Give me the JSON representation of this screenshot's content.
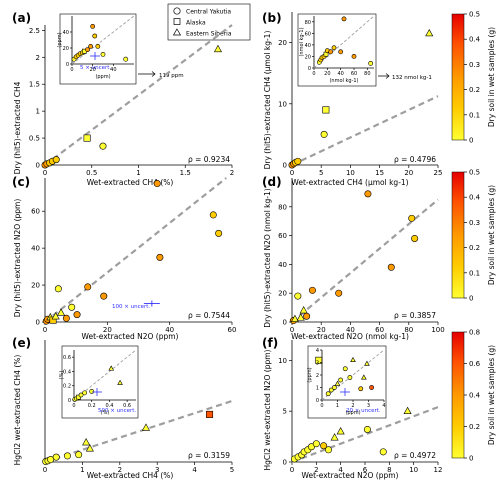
{
  "colors": {
    "scale": [
      "#ffff33",
      "#ffcc00",
      "#ff9900",
      "#ff5500",
      "#e60000"
    ],
    "reference_line": "#9e9e9e",
    "uncertainty": "#3030ff"
  },
  "legend": {
    "items": [
      {
        "label": "Central Yakutia",
        "marker": "circle"
      },
      {
        "label": "Alaska",
        "marker": "square"
      },
      {
        "label": "Eastern Siberia",
        "marker": "triangle"
      }
    ]
  },
  "colorbars": [
    {
      "label": "Dry soil in wet samples (g)",
      "ticks": [
        "0",
        "0.1",
        "0.2",
        "0.3",
        "0.4",
        "0.5"
      ],
      "max": 0.5
    },
    {
      "label": "Dry soil in wet samples (g)",
      "ticks": [
        "0",
        "0.1",
        "0.2",
        "0.3",
        "0.4",
        "0.5"
      ],
      "max": 0.5
    },
    {
      "label": "Dry soil in wet samples (g)",
      "ticks": [
        "0",
        "0.2",
        "0.4",
        "0.6",
        "0.8"
      ],
      "max": 0.8
    }
  ],
  "chart_data": [
    {
      "type": "scatter",
      "panel": "(a)",
      "xlabel": "Wet-extracted CH4 (%)",
      "ylabel": "Dry (hit5)-extracted CH4",
      "xlim": [
        0,
        2
      ],
      "ylim": [
        0,
        2.6
      ],
      "xticks": [
        "0",
        "0.5",
        "1",
        "1.5",
        "2"
      ],
      "yticks": [
        "0",
        "0.5",
        "1",
        "1.5",
        "2",
        "2.5"
      ],
      "annotation": "ρ = 0.9234",
      "points": [
        {
          "x": 0.0,
          "y": 0.0,
          "shape": "circle",
          "c": 0.45
        },
        {
          "x": 0.02,
          "y": 0.02,
          "shape": "circle",
          "c": 0.4
        },
        {
          "x": 0.05,
          "y": 0.04,
          "shape": "circle",
          "c": 0.35
        },
        {
          "x": 0.08,
          "y": 0.07,
          "shape": "circle",
          "c": 0.3
        },
        {
          "x": 0.12,
          "y": 0.1,
          "shape": "circle",
          "c": 0.25
        },
        {
          "x": 0.45,
          "y": 0.5,
          "shape": "square",
          "c": 0.1
        },
        {
          "x": 0.62,
          "y": 0.35,
          "shape": "circle",
          "c": 0.05
        },
        {
          "x": 1.85,
          "y": 2.15,
          "shape": "triangle",
          "c": 0.05
        }
      ],
      "inset": {
        "xlabel": "(ppm)",
        "ylabel": "(ppm)",
        "xlim": [
          0,
          60
        ],
        "ylim": [
          0,
          60
        ],
        "xticks": [
          "0",
          "20",
          "40"
        ],
        "yticks": [
          "0",
          "20",
          "40"
        ],
        "uncertainty_label": "5 × uncert.",
        "arrow_label": "119 ppm",
        "points": [
          {
            "x": 2,
            "y": 6,
            "shape": "circle",
            "c": 0.2
          },
          {
            "x": 4,
            "y": 9,
            "shape": "circle",
            "c": 0.3
          },
          {
            "x": 6,
            "y": 11,
            "shape": "circle",
            "c": 0.25
          },
          {
            "x": 8,
            "y": 13,
            "shape": "circle",
            "c": 0.35
          },
          {
            "x": 10,
            "y": 14,
            "shape": "circle",
            "c": 0.3
          },
          {
            "x": 12,
            "y": 16,
            "shape": "square",
            "c": 0.2
          },
          {
            "x": 15,
            "y": 18,
            "shape": "circle",
            "c": 0.4
          },
          {
            "x": 18,
            "y": 22,
            "shape": "circle",
            "c": 0.45
          },
          {
            "x": 20,
            "y": 47,
            "shape": "circle",
            "c": 0.4
          },
          {
            "x": 22,
            "y": 35,
            "shape": "circle",
            "c": 0.3
          },
          {
            "x": 25,
            "y": 22,
            "shape": "circle",
            "c": 0.35
          },
          {
            "x": 30,
            "y": 12,
            "shape": "circle",
            "c": 0.2
          },
          {
            "x": 52,
            "y": 6,
            "shape": "circle",
            "c": 0.1
          }
        ]
      }
    },
    {
      "type": "scatter",
      "panel": "(b)",
      "xlabel": "Wet-extracted CH4 (µmol kg-1)",
      "ylabel": "Dry (hit5)-extracted CH4 (µmol kg-1)",
      "xlim": [
        0,
        25
      ],
      "ylim": [
        0,
        25
      ],
      "xticks": [
        "0",
        "5",
        "10",
        "15",
        "20",
        "25"
      ],
      "yticks": [
        "0",
        "10",
        "20"
      ],
      "annotation": "ρ = 0.4796",
      "points": [
        {
          "x": 0.0,
          "y": 0.0,
          "shape": "circle",
          "c": 0.45
        },
        {
          "x": 0.3,
          "y": 0.2,
          "shape": "circle",
          "c": 0.4
        },
        {
          "x": 0.6,
          "y": 0.4,
          "shape": "circle",
          "c": 0.35
        },
        {
          "x": 1.0,
          "y": 0.6,
          "shape": "circle",
          "c": 0.3
        },
        {
          "x": 5.8,
          "y": 9.0,
          "shape": "square",
          "c": 0.1
        },
        {
          "x": 5.5,
          "y": 5.0,
          "shape": "circle",
          "c": 0.05
        },
        {
          "x": 23.5,
          "y": 21.5,
          "shape": "triangle",
          "c": 0.05
        }
      ],
      "inset": {
        "xlabel": "(nmol kg-1)",
        "ylabel": "(nmol kg-1)",
        "xlim": [
          0,
          90
        ],
        "ylim": [
          0,
          90
        ],
        "xticks": [
          "0",
          "20",
          "40",
          "60",
          "80"
        ],
        "yticks": [
          "0",
          "20",
          "40",
          "60",
          "80"
        ],
        "arrow_label": "132 nmol kg-1",
        "points": [
          {
            "x": 8,
            "y": 10,
            "shape": "circle",
            "c": 0.2
          },
          {
            "x": 10,
            "y": 14,
            "shape": "circle",
            "c": 0.3
          },
          {
            "x": 12,
            "y": 18,
            "shape": "circle",
            "c": 0.25
          },
          {
            "x": 15,
            "y": 20,
            "shape": "circle",
            "c": 0.35
          },
          {
            "x": 18,
            "y": 24,
            "shape": "square",
            "c": 0.2
          },
          {
            "x": 20,
            "y": 30,
            "shape": "circle",
            "c": 0.3
          },
          {
            "x": 25,
            "y": 28,
            "shape": "circle",
            "c": 0.4
          },
          {
            "x": 30,
            "y": 35,
            "shape": "circle",
            "c": 0.35
          },
          {
            "x": 40,
            "y": 28,
            "shape": "circle",
            "c": 0.45
          },
          {
            "x": 45,
            "y": 85,
            "shape": "circle",
            "c": 0.5
          },
          {
            "x": 60,
            "y": 20,
            "shape": "circle",
            "c": 0.4
          },
          {
            "x": 85,
            "y": 8,
            "shape": "circle",
            "c": 0.1
          }
        ]
      }
    },
    {
      "type": "scatter",
      "panel": "(c)",
      "xlabel": "Wet-extracted N2O (ppm)",
      "ylabel": "Dry (hit5)-extracted N2O (ppm)",
      "xlim": [
        0,
        70
      ],
      "ylim": [
        0,
        78
      ],
      "xticks": [
        "0",
        "20",
        "40",
        "60"
      ],
      "yticks": [
        "0",
        "20",
        "40",
        "60"
      ],
      "annotation": "ρ = 0.7544",
      "uncertainty_label": "100 × uncert.",
      "points": [
        {
          "x": 0.5,
          "y": 0.5,
          "shape": "circle",
          "c": 0.45
        },
        {
          "x": 1.0,
          "y": 1.5,
          "shape": "circle",
          "c": 0.4
        },
        {
          "x": 2.0,
          "y": 2.5,
          "shape": "triangle",
          "c": 0.05
        },
        {
          "x": 3.0,
          "y": 1.0,
          "shape": "square",
          "c": 0.35
        },
        {
          "x": 4.0,
          "y": 3.0,
          "shape": "triangle",
          "c": 0.1
        },
        {
          "x": 5.0,
          "y": 18.0,
          "shape": "circle",
          "c": 0.05
        },
        {
          "x": 6.0,
          "y": 5.0,
          "shape": "triangle",
          "c": 0.05
        },
        {
          "x": 8.0,
          "y": 2.0,
          "shape": "circle",
          "c": 0.4
        },
        {
          "x": 10.0,
          "y": 8.0,
          "shape": "circle",
          "c": 0.1
        },
        {
          "x": 12.0,
          "y": 4.0,
          "shape": "circle",
          "c": 0.45
        },
        {
          "x": 16.0,
          "y": 19.0,
          "shape": "circle",
          "c": 0.45
        },
        {
          "x": 22.0,
          "y": 14.0,
          "shape": "circle",
          "c": 0.4
        },
        {
          "x": 42.0,
          "y": 75.0,
          "shape": "circle",
          "c": 0.45
        },
        {
          "x": 43.0,
          "y": 35.0,
          "shape": "circle",
          "c": 0.4
        },
        {
          "x": 63.0,
          "y": 58.0,
          "shape": "circle",
          "c": 0.25
        },
        {
          "x": 65.0,
          "y": 48.0,
          "shape": "circle",
          "c": 0.3
        }
      ]
    },
    {
      "type": "scatter",
      "panel": "(d)",
      "xlabel": "Wet-extracted N2O (nmol kg-1)",
      "ylabel": "Dry (hit5)-extracted N2O (nmol kg-1)",
      "xlim": [
        0,
        100
      ],
      "ylim": [
        0,
        100
      ],
      "xticks": [
        "0",
        "20",
        "40",
        "60",
        "80",
        "100"
      ],
      "yticks": [
        "0",
        "20",
        "40",
        "60",
        "80"
      ],
      "annotation": "ρ = 0.3857",
      "points": [
        {
          "x": 1,
          "y": 1,
          "shape": "circle",
          "c": 0.45
        },
        {
          "x": 2,
          "y": 2,
          "shape": "triangle",
          "c": 0.05
        },
        {
          "x": 4,
          "y": 18,
          "shape": "circle",
          "c": 0.05
        },
        {
          "x": 6,
          "y": 3,
          "shape": "triangle",
          "c": 0.1
        },
        {
          "x": 8,
          "y": 8,
          "shape": "triangle",
          "c": 0.05
        },
        {
          "x": 10,
          "y": 4,
          "shape": "circle",
          "c": 0.4
        },
        {
          "x": 14,
          "y": 22,
          "shape": "circle",
          "c": 0.45
        },
        {
          "x": 32,
          "y": 20,
          "shape": "circle",
          "c": 0.4
        },
        {
          "x": 52,
          "y": 89,
          "shape": "circle",
          "c": 0.45
        },
        {
          "x": 68,
          "y": 38,
          "shape": "circle",
          "c": 0.4
        },
        {
          "x": 82,
          "y": 72,
          "shape": "circle",
          "c": 0.25
        },
        {
          "x": 84,
          "y": 58,
          "shape": "circle",
          "c": 0.3
        }
      ]
    },
    {
      "type": "scatter",
      "panel": "(e)",
      "xlabel": "Wet-extracted CH4 (%)",
      "ylabel": "HgCl2 wet-extracted CH4 (%)",
      "xlim": [
        0,
        5
      ],
      "ylim": [
        0,
        5
      ],
      "xticks": [
        "0",
        "1",
        "2",
        "3",
        "4",
        "5"
      ],
      "yticks": [],
      "annotation": "ρ = 0.3159",
      "points": [
        {
          "x": 0.02,
          "y": 0.02,
          "shape": "circle",
          "c": 0.1
        },
        {
          "x": 0.08,
          "y": 0.05,
          "shape": "circle",
          "c": 0.2
        },
        {
          "x": 0.15,
          "y": 0.1,
          "shape": "circle",
          "c": 0.1
        },
        {
          "x": 0.3,
          "y": 0.2,
          "shape": "circle",
          "c": 0.1
        },
        {
          "x": 0.6,
          "y": 0.25,
          "shape": "circle",
          "c": 0.05
        },
        {
          "x": 0.9,
          "y": 0.3,
          "shape": "circle",
          "c": 0.1
        },
        {
          "x": 1.2,
          "y": 0.55,
          "shape": "triangle",
          "c": 0.05
        },
        {
          "x": 1.1,
          "y": 0.8,
          "shape": "triangle",
          "c": 0.05
        },
        {
          "x": 2.7,
          "y": 1.4,
          "shape": "triangle",
          "c": 0.05
        },
        {
          "x": 4.4,
          "y": 1.95,
          "shape": "square",
          "c": 0.75
        }
      ],
      "inset": {
        "xlabel": "(%)",
        "ylabel": "(%)",
        "xlim": [
          0,
          0.7
        ],
        "ylim": [
          0,
          0.7
        ],
        "xticks": [
          "0",
          "0.2",
          "0.4",
          "0.6"
        ],
        "yticks": [
          "0",
          "0.2",
          "0.4",
          "0.6"
        ],
        "uncertainty_label": "500 × uncert.",
        "points": [
          {
            "x": 0.01,
            "y": 0.01,
            "shape": "circle",
            "c": 0.1
          },
          {
            "x": 0.03,
            "y": 0.02,
            "shape": "circle",
            "c": 0.2
          },
          {
            "x": 0.05,
            "y": 0.04,
            "shape": "square",
            "c": 0.1
          },
          {
            "x": 0.08,
            "y": 0.07,
            "shape": "circle",
            "c": 0.1
          },
          {
            "x": 0.12,
            "y": 0.1,
            "shape": "circle",
            "c": 0.15
          },
          {
            "x": 0.2,
            "y": 0.12,
            "shape": "circle",
            "c": 0.2
          },
          {
            "x": 0.42,
            "y": 0.44,
            "shape": "triangle",
            "c": 0.05
          },
          {
            "x": 0.52,
            "y": 0.24,
            "shape": "triangle",
            "c": 0.05
          }
        ]
      }
    },
    {
      "type": "scatter",
      "panel": "(f)",
      "xlabel": "Wet-extracted N2O (ppm)",
      "ylabel": "HgCl2 wet-extracted N2O (ppm)",
      "xlim": [
        0,
        12
      ],
      "ylim": [
        0,
        12
      ],
      "xticks": [
        "0",
        "2",
        "4",
        "6",
        "8",
        "10",
        "12"
      ],
      "yticks": [
        "0",
        "5",
        "10"
      ],
      "annotation": "ρ = 0.4972",
      "points": [
        {
          "x": 0.2,
          "y": 0.3,
          "shape": "circle",
          "c": 0.1
        },
        {
          "x": 0.5,
          "y": 0.5,
          "shape": "circle",
          "c": 0.15
        },
        {
          "x": 0.8,
          "y": 0.7,
          "shape": "circle",
          "c": 0.1
        },
        {
          "x": 1.0,
          "y": 1.0,
          "shape": "circle",
          "c": 0.2
        },
        {
          "x": 1.3,
          "y": 1.2,
          "shape": "circle",
          "c": 0.1
        },
        {
          "x": 1.6,
          "y": 1.5,
          "shape": "circle",
          "c": 0.1
        },
        {
          "x": 2.0,
          "y": 1.8,
          "shape": "circle",
          "c": 0.2
        },
        {
          "x": 2.2,
          "y": 10.0,
          "shape": "square",
          "c": 0.1
        },
        {
          "x": 2.6,
          "y": 1.6,
          "shape": "circle",
          "c": 0.3
        },
        {
          "x": 3.0,
          "y": 1.2,
          "shape": "circle",
          "c": 0.2
        },
        {
          "x": 3.5,
          "y": 2.4,
          "shape": "triangle",
          "c": 0.05
        },
        {
          "x": 4.0,
          "y": 3.0,
          "shape": "triangle",
          "c": 0.1
        },
        {
          "x": 6.2,
          "y": 3.2,
          "shape": "circle",
          "c": 0.1
        },
        {
          "x": 9.5,
          "y": 5.0,
          "shape": "triangle",
          "c": 0.05
        },
        {
          "x": 7.5,
          "y": 1.0,
          "shape": "circle",
          "c": 0.1
        }
      ],
      "inset": {
        "xlabel": "(ppm)",
        "ylabel": "(ppm)",
        "xlim": [
          0,
          4
        ],
        "ylim": [
          0,
          4
        ],
        "xticks": [
          "0",
          "1",
          "2",
          "3",
          "4"
        ],
        "yticks": [
          "0",
          "1",
          "2",
          "3",
          "4"
        ],
        "uncertainty_label": "20 × uncert.",
        "points": [
          {
            "x": 0.4,
            "y": 0.5,
            "shape": "circle",
            "c": 0.1
          },
          {
            "x": 0.6,
            "y": 0.8,
            "shape": "circle",
            "c": 0.2
          },
          {
            "x": 0.8,
            "y": 1.0,
            "shape": "circle",
            "c": 0.1
          },
          {
            "x": 1.0,
            "y": 1.3,
            "shape": "triangle",
            "c": 0.05
          },
          {
            "x": 1.2,
            "y": 1.6,
            "shape": "circle",
            "c": 0.1
          },
          {
            "x": 1.5,
            "y": 2.5,
            "shape": "circle",
            "c": 0.2
          },
          {
            "x": 1.8,
            "y": 1.8,
            "shape": "circle",
            "c": 0.15
          },
          {
            "x": 2.0,
            "y": 3.2,
            "shape": "triangle",
            "c": 0.05
          },
          {
            "x": 2.5,
            "y": 0.9,
            "shape": "circle",
            "c": 0.3
          },
          {
            "x": 2.7,
            "y": 1.8,
            "shape": "triangle",
            "c": 0.05
          },
          {
            "x": 2.9,
            "y": 2.9,
            "shape": "triangle",
            "c": 0.1
          },
          {
            "x": 3.2,
            "y": 1.0,
            "shape": "circle",
            "c": 0.75
          }
        ]
      }
    }
  ]
}
